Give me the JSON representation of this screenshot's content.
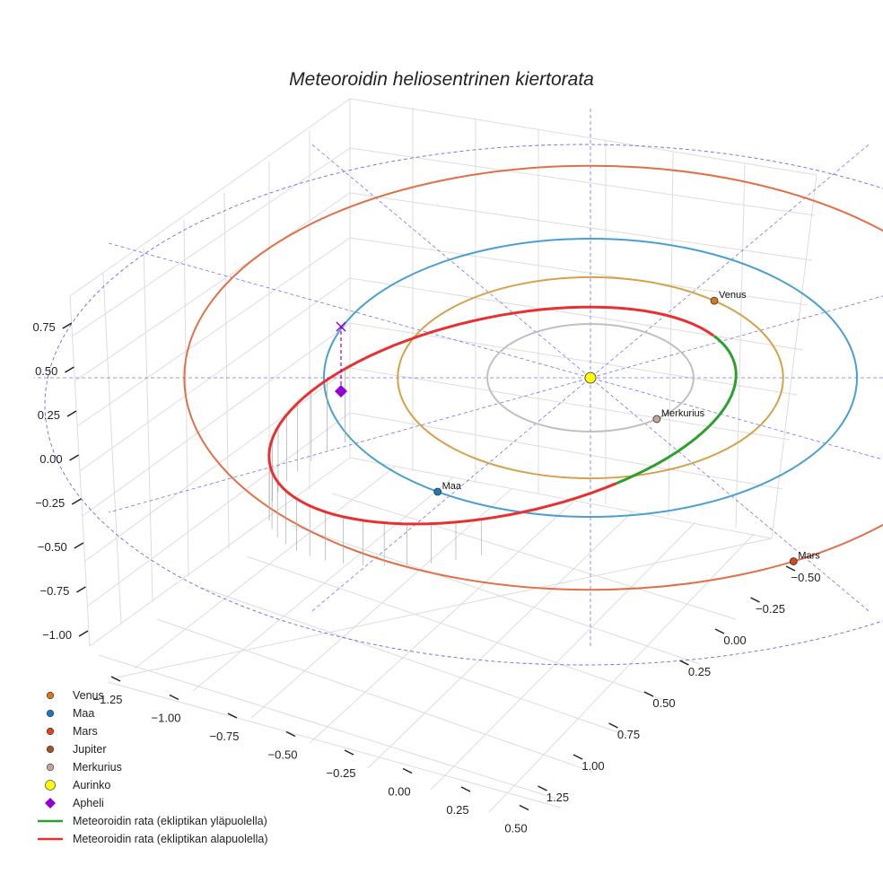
{
  "chart_data": {
    "type": "line",
    "projection": "3d",
    "title": "Meteoroidin heliosentrinen kiertorata",
    "axes": {
      "x": {
        "ticks": [
          -1.25,
          -1.0,
          -0.75,
          -0.5,
          -0.25,
          0.0,
          0.25,
          0.5
        ],
        "tick_labels": [
          "−1.25",
          "−1.00",
          "−0.75",
          "−0.50",
          "−0.25",
          "0.00",
          "0.25",
          "0.50"
        ]
      },
      "y": {
        "ticks": [
          -0.5,
          -0.25,
          0.0,
          0.25,
          0.5,
          0.75,
          1.0,
          1.25
        ],
        "tick_labels": [
          "−0.50",
          "−0.25",
          "0.00",
          "0.25",
          "0.50",
          "0.75",
          "1.00",
          "1.25"
        ]
      },
      "z": {
        "ticks": [
          -1.0,
          -0.75,
          -0.5,
          -0.25,
          0.0,
          0.25,
          0.5,
          0.75
        ],
        "tick_labels": [
          "−1.00",
          "−0.75",
          "−0.50",
          "−0.25",
          "0.00",
          "0.25",
          "0.50",
          "0.75"
        ]
      }
    },
    "planet_orbits": [
      {
        "name": "Merkurius",
        "a_au": 0.387,
        "color": "#c0c0c0"
      },
      {
        "name": "Venus",
        "a_au": 0.723,
        "color": "#d4a24a"
      },
      {
        "name": "Maa",
        "a_au": 1.0,
        "color": "#4a9fd0"
      },
      {
        "name": "Mars",
        "a_au": 1.524,
        "color": "#e07048"
      }
    ],
    "planets": [
      {
        "name": "Venus",
        "label": "Venus",
        "angle_deg": 50,
        "color": "#d4781e"
      },
      {
        "name": "Maa",
        "label": "Maa",
        "angle_deg": 235,
        "color": "#1f77b4"
      },
      {
        "name": "Mars",
        "label": "Mars",
        "angle_deg": 300,
        "color": "#d9461e"
      },
      {
        "name": "Merkurius",
        "label": "Merkurius",
        "angle_deg": 310,
        "color": "#c4a4a4"
      }
    ],
    "sun": {
      "name": "Aurinko",
      "color": "#ffff00"
    },
    "meteoroid_orbit": {
      "segments": [
        {
          "name": "Meteoroidin rata (ekliptikan yläpuolella)",
          "color": "#2ca02c"
        },
        {
          "name": "Meteoroidin rata (ekliptikan alapuolella)",
          "color": "#e83030"
        }
      ]
    },
    "aphelion": {
      "name": "Apheli",
      "color": "#9400d3"
    },
    "legend": {
      "position": "bottom-left",
      "entries": [
        {
          "label": "Venus",
          "marker": "dot",
          "color": "#d4781e"
        },
        {
          "label": "Maa",
          "marker": "dot",
          "color": "#1f77b4"
        },
        {
          "label": "Mars",
          "marker": "dot",
          "color": "#d9461e"
        },
        {
          "label": "Jupiter",
          "marker": "dot",
          "color": "#a0522d"
        },
        {
          "label": "Merkurius",
          "marker": "dot",
          "color": "#c4a4a4"
        },
        {
          "label": "Aurinko",
          "marker": "bigdot",
          "color": "#ffff00"
        },
        {
          "label": "Apheli",
          "marker": "diamond",
          "color": "#9400d3"
        },
        {
          "label": "Meteoroidin rata (ekliptikan yläpuolella)",
          "marker": "line",
          "color": "#2ca02c"
        },
        {
          "label": "Meteoroidin rata (ekliptikan alapuolella)",
          "marker": "line",
          "color": "#e83030"
        }
      ]
    }
  }
}
